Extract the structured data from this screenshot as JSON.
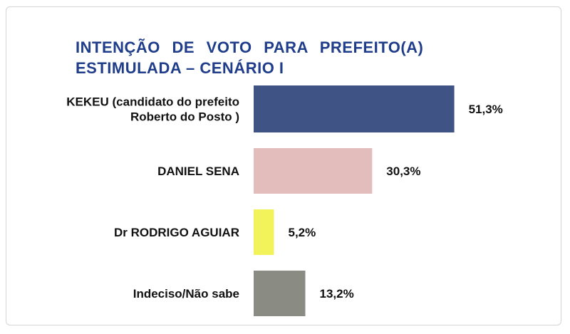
{
  "chart_data": {
    "type": "bar",
    "orientation": "horizontal",
    "title_lines": [
      "INTENÇÃO DE VOTO PARA PREFEITO(A)",
      "ESTIMULADA – CENÁRIO I"
    ],
    "categories": [
      [
        "KEKEU (candidato do prefeito",
        "Roberto do Posto )"
      ],
      [
        "DANIEL SENA"
      ],
      [
        "Dr RODRIGO AGUIAR"
      ],
      [
        "Indeciso/Não sabe"
      ]
    ],
    "values": [
      51.3,
      30.3,
      5.2,
      13.2
    ],
    "value_labels": [
      "51,3%",
      "30,3%",
      "5,2%",
      "13,2%"
    ],
    "colors": [
      "#3f5484",
      "#e3bcbc",
      "#f2f25a",
      "#8a8c84"
    ],
    "unit": "%",
    "grid": false,
    "legend": "none"
  }
}
